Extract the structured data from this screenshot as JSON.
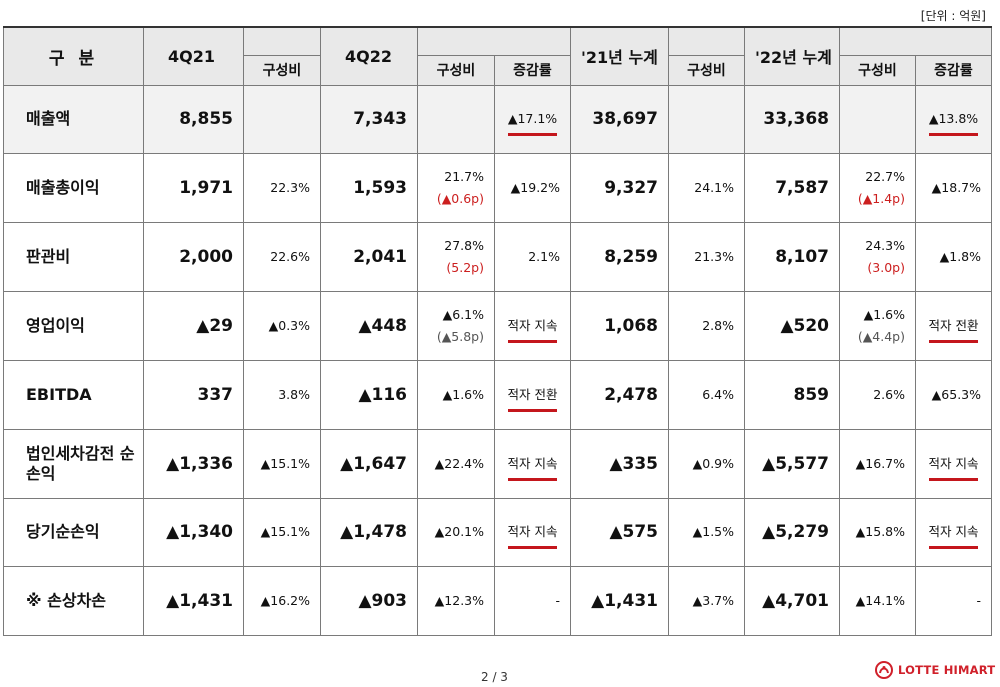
{
  "unit_label": "[단위 : 억원]",
  "header": {
    "gubun": "구 분",
    "q21": "4Q21",
    "q22": "4Q22",
    "y21": "'21년 누계",
    "y22": "'22년 누계",
    "ratio": "구성비",
    "change": "증감률"
  },
  "rows": [
    {
      "label": "매출액",
      "q21": "8,855",
      "q21_ratio": "",
      "q22": "7,343",
      "q22_ratio": "",
      "q22_ratio_sub": "",
      "q22_change": "▲17.1%",
      "y21": "38,697",
      "y21_ratio": "",
      "y22": "33,368",
      "y22_ratio": "",
      "y22_ratio_sub": "",
      "y22_change": "▲13.8%"
    },
    {
      "label": "매출총이익",
      "q21": "1,971",
      "q21_ratio": "22.3%",
      "q22": "1,593",
      "q22_ratio": "21.7%",
      "q22_ratio_sub": "(▲0.6p)",
      "q22_change": "▲19.2%",
      "y21": "9,327",
      "y21_ratio": "24.1%",
      "y22": "7,587",
      "y22_ratio": "22.7%",
      "y22_ratio_sub": "(▲1.4p)",
      "y22_change": "▲18.7%"
    },
    {
      "label": "판관비",
      "q21": "2,000",
      "q21_ratio": "22.6%",
      "q22": "2,041",
      "q22_ratio": "27.8%",
      "q22_ratio_sub": "(5.2p)",
      "q22_change": "2.1%",
      "y21": "8,259",
      "y21_ratio": "21.3%",
      "y22": "8,107",
      "y22_ratio": "24.3%",
      "y22_ratio_sub": "(3.0p)",
      "y22_change": "▲1.8%"
    },
    {
      "label": "영업이익",
      "q21": "▲29",
      "q21_ratio": "▲0.3%",
      "q22": "▲448",
      "q22_ratio": "▲6.1%",
      "q22_ratio_sub": "(▲5.8p)",
      "q22_change": "적자 지속",
      "y21": "1,068",
      "y21_ratio": "2.8%",
      "y22": "▲520",
      "y22_ratio": "▲1.6%",
      "y22_ratio_sub": "(▲4.4p)",
      "y22_change": "적자 전환"
    },
    {
      "label": "EBITDA",
      "q21": "337",
      "q21_ratio": "3.8%",
      "q22": "▲116",
      "q22_ratio": "▲1.6%",
      "q22_ratio_sub": "",
      "q22_change": "적자 전환",
      "y21": "2,478",
      "y21_ratio": "6.4%",
      "y22": "859",
      "y22_ratio": "2.6%",
      "y22_ratio_sub": "",
      "y22_change": "▲65.3%"
    },
    {
      "label": "법인세차감전 순손익",
      "q21": "▲1,336",
      "q21_ratio": "▲15.1%",
      "q22": "▲1,647",
      "q22_ratio": "▲22.4%",
      "q22_ratio_sub": "",
      "q22_change": "적자 지속",
      "y21": "▲335",
      "y21_ratio": "▲0.9%",
      "y22": "▲5,577",
      "y22_ratio": "▲16.7%",
      "y22_ratio_sub": "",
      "y22_change": "적자 지속"
    },
    {
      "label": "당기순손익",
      "q21": "▲1,340",
      "q21_ratio": "▲15.1%",
      "q22": "▲1,478",
      "q22_ratio": "▲20.1%",
      "q22_ratio_sub": "",
      "q22_change": "적자 지속",
      "y21": "▲575",
      "y21_ratio": "▲1.5%",
      "y22": "▲5,279",
      "y22_ratio": "▲15.8%",
      "y22_ratio_sub": "",
      "y22_change": "적자 지속"
    },
    {
      "label": "※ 손상차손",
      "q21": "▲1,431",
      "q21_ratio": "▲16.2%",
      "q22": "▲903",
      "q22_ratio": "▲12.3%",
      "q22_ratio_sub": "",
      "q22_change": "-",
      "y21": "▲1,431",
      "y21_ratio": "▲3.7%",
      "y22": "▲4,701",
      "y22_ratio": "▲14.1%",
      "y22_ratio_sub": "",
      "y22_change": "-"
    }
  ],
  "underlined_changes": [
    {
      "row": 0,
      "col": "q22_change"
    },
    {
      "row": 0,
      "col": "y22_change"
    },
    {
      "row": 3,
      "col": "q22_change"
    },
    {
      "row": 3,
      "col": "y22_change"
    },
    {
      "row": 4,
      "col": "q22_change"
    },
    {
      "row": 5,
      "col": "q22_change"
    },
    {
      "row": 5,
      "col": "y22_change"
    },
    {
      "row": 6,
      "col": "q22_change"
    },
    {
      "row": 6,
      "col": "y22_change"
    }
  ],
  "colors": {
    "accent_red": "#cc1f1f",
    "header_bg": "#e9e9e9",
    "underline": "#c4161c"
  },
  "footer": {
    "page_number": "2 / 3",
    "logo_text": "LOTTE HIMART",
    "logo_icon": "lotte-logo-icon"
  }
}
